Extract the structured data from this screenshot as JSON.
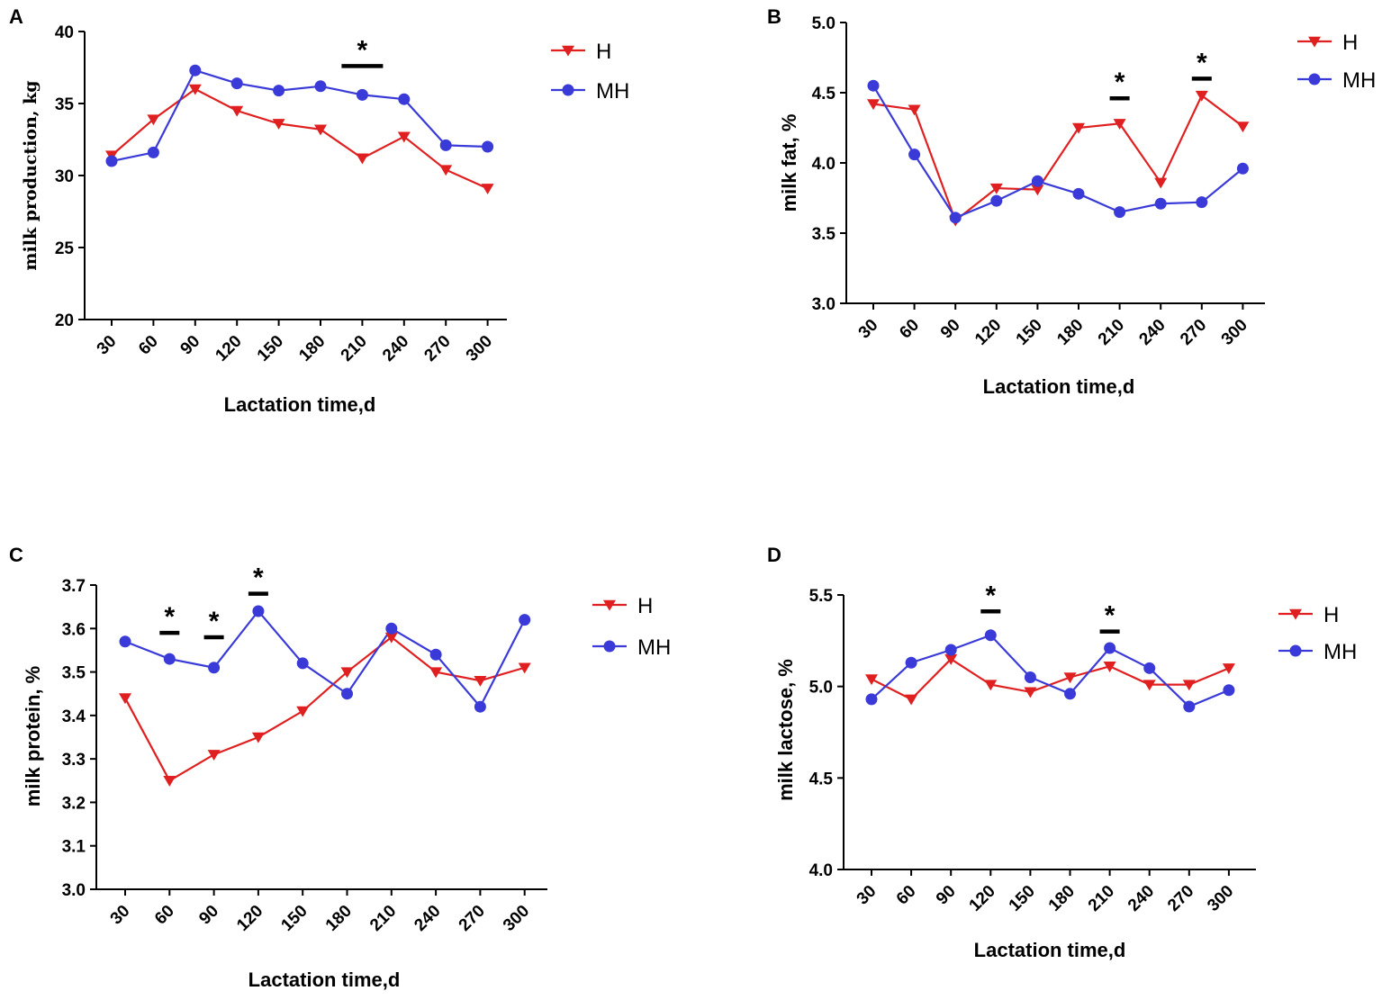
{
  "colors": {
    "H": "#e02020",
    "MH": "#3a3ad8",
    "axis": "#000000"
  },
  "chart_data": [
    {
      "panel": "A",
      "type": "line",
      "title": "",
      "xlabel": "Lactation time,d",
      "ylabel": "milk production, kg",
      "categories": [
        "30",
        "60",
        "90",
        "120",
        "150",
        "180",
        "210",
        "240",
        "270",
        "300"
      ],
      "ylim": [
        20,
        40
      ],
      "yticks": [
        "20",
        "25",
        "30",
        "35",
        "40"
      ],
      "series": [
        {
          "name": "H",
          "marker": "triangle-down",
          "values": [
            31.4,
            33.9,
            36.0,
            34.5,
            33.6,
            33.2,
            31.2,
            32.7,
            30.4,
            29.1
          ]
        },
        {
          "name": "MH",
          "marker": "circle",
          "values": [
            31.0,
            31.6,
            37.3,
            36.4,
            35.9,
            36.2,
            35.6,
            35.3,
            32.1,
            32.0
          ]
        }
      ],
      "significance": [
        {
          "category": "210",
          "label": "*",
          "y": 37.6
        }
      ],
      "legend": "top-right"
    },
    {
      "panel": "B",
      "type": "line",
      "title": "",
      "xlabel": "Lactation time,d",
      "ylabel": "milk fat, %",
      "categories": [
        "30",
        "60",
        "90",
        "120",
        "150",
        "180",
        "210",
        "240",
        "270",
        "300"
      ],
      "ylim": [
        3.0,
        5.0
      ],
      "yticks": [
        "3.0",
        "3.5",
        "4.0",
        "4.5",
        "5.0"
      ],
      "series": [
        {
          "name": "H",
          "marker": "triangle-down",
          "values": [
            4.42,
            4.38,
            3.59,
            3.82,
            3.81,
            4.25,
            4.28,
            3.86,
            4.48,
            4.26
          ]
        },
        {
          "name": "MH",
          "marker": "circle",
          "values": [
            4.55,
            4.06,
            3.61,
            3.73,
            3.87,
            3.78,
            3.65,
            3.71,
            3.72,
            3.96
          ]
        }
      ],
      "significance": [
        {
          "category": "210",
          "label": "*",
          "y": 4.46
        },
        {
          "category": "270",
          "label": "*",
          "y": 4.6
        }
      ],
      "legend": "top-right"
    },
    {
      "panel": "C",
      "type": "line",
      "title": "",
      "xlabel": "Lactation time,d",
      "ylabel": "milk protein, %",
      "categories": [
        "30",
        "60",
        "90",
        "120",
        "150",
        "180",
        "210",
        "240",
        "270",
        "300"
      ],
      "ylim": [
        3.0,
        3.7
      ],
      "yticks": [
        "3.0",
        "3.1",
        "3.2",
        "3.3",
        "3.4",
        "3.5",
        "3.6",
        "3.7"
      ],
      "series": [
        {
          "name": "H",
          "marker": "triangle-down",
          "values": [
            3.44,
            3.25,
            3.31,
            3.35,
            3.41,
            3.5,
            3.58,
            3.5,
            3.48,
            3.51
          ]
        },
        {
          "name": "MH",
          "marker": "circle",
          "values": [
            3.57,
            3.53,
            3.51,
            3.64,
            3.52,
            3.45,
            3.6,
            3.54,
            3.42,
            3.62
          ]
        }
      ],
      "significance": [
        {
          "category": "60",
          "label": "*",
          "y": 3.59
        },
        {
          "category": "90",
          "label": "*",
          "y": 3.58
        },
        {
          "category": "120",
          "label": "*",
          "y": 3.68
        }
      ],
      "legend": "top-right"
    },
    {
      "panel": "D",
      "type": "line",
      "title": "",
      "xlabel": "Lactation time,d",
      "ylabel": "milk lactose, %",
      "categories": [
        "30",
        "60",
        "90",
        "120",
        "150",
        "180",
        "210",
        "240",
        "270",
        "300"
      ],
      "ylim": [
        4.0,
        5.5
      ],
      "yticks": [
        "4.0",
        "4.5",
        "5.0",
        "5.5"
      ],
      "series": [
        {
          "name": "H",
          "marker": "triangle-down",
          "values": [
            5.04,
            4.93,
            5.15,
            5.01,
            4.97,
            5.05,
            5.11,
            5.01,
            5.01,
            5.1
          ]
        },
        {
          "name": "MH",
          "marker": "circle",
          "values": [
            4.93,
            5.13,
            5.2,
            5.28,
            5.05,
            4.96,
            5.21,
            5.1,
            4.89,
            4.98
          ]
        }
      ],
      "significance": [
        {
          "category": "120",
          "label": "*",
          "y": 5.41
        },
        {
          "category": "210",
          "label": "*",
          "y": 5.3
        }
      ],
      "legend": "top-right"
    }
  ]
}
